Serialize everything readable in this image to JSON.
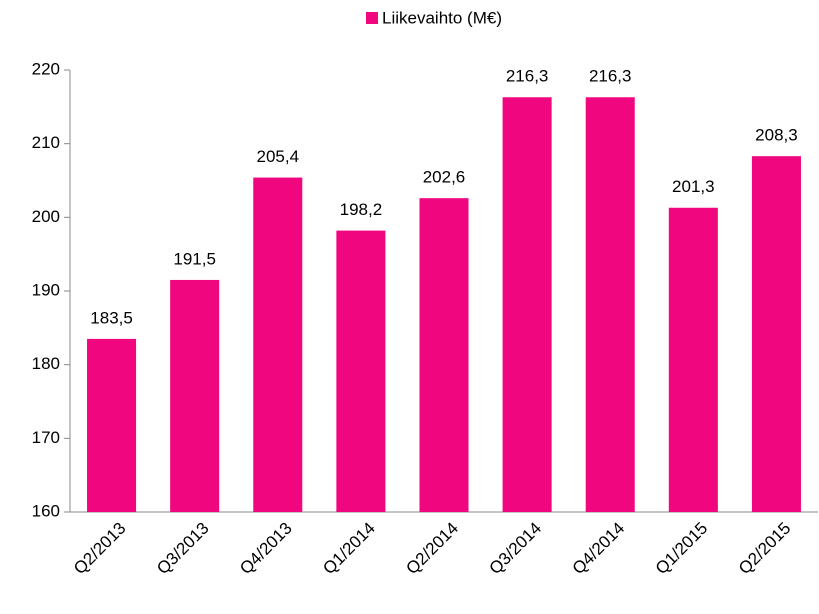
{
  "chart_data": {
    "type": "bar",
    "categories": [
      "Q2/2013",
      "Q3/2013",
      "Q4/2013",
      "Q1/2014",
      "Q2/2014",
      "Q3/2014",
      "Q4/2014",
      "Q1/2015",
      "Q2/2015"
    ],
    "series": [
      {
        "name": "Liikevaihto (M€)",
        "color": "#f0067f",
        "values": [
          183.5,
          191.5,
          205.4,
          198.2,
          202.6,
          216.3,
          216.3,
          201.3,
          208.3
        ],
        "value_labels": [
          "183,5",
          "191,5",
          "205,4",
          "198,2",
          "202,6",
          "216,3",
          "216,3",
          "201,3",
          "208,3"
        ]
      }
    ],
    "ylim": [
      160,
      220
    ],
    "yticks": [
      160,
      170,
      180,
      190,
      200,
      210,
      220
    ],
    "grid": false,
    "legend": "top"
  }
}
